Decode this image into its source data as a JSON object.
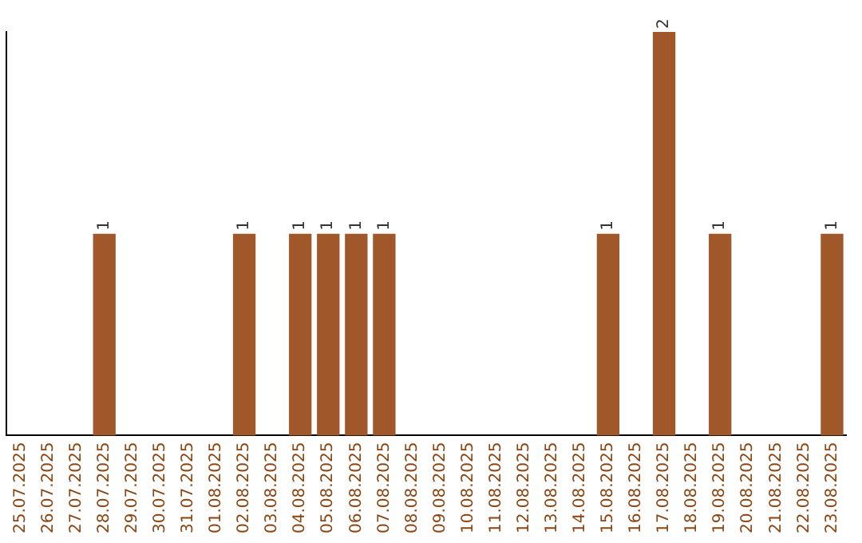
{
  "chart_data": {
    "type": "bar",
    "categories": [
      "25.07.2025",
      "26.07.2025",
      "27.07.2025",
      "28.07.2025",
      "29.07.2025",
      "30.07.2025",
      "31.07.2025",
      "01.08.2025",
      "02.08.2025",
      "03.08.2025",
      "04.08.2025",
      "05.08.2025",
      "06.08.2025",
      "07.08.2025",
      "08.08.2025",
      "09.08.2025",
      "10.08.2025",
      "11.08.2025",
      "12.08.2025",
      "13.08.2025",
      "14.08.2025",
      "15.08.2025",
      "16.08.2025",
      "17.08.2025",
      "18.08.2025",
      "19.08.2025",
      "20.08.2025",
      "21.08.2025",
      "22.08.2025",
      "23.08.2025"
    ],
    "values": [
      0,
      0,
      0,
      1,
      0,
      0,
      0,
      0,
      1,
      0,
      1,
      1,
      1,
      1,
      0,
      0,
      0,
      0,
      0,
      0,
      0,
      1,
      0,
      2,
      0,
      1,
      0,
      0,
      0,
      1
    ],
    "value_labels": [
      null,
      null,
      null,
      "1",
      null,
      null,
      null,
      null,
      "1",
      null,
      "1",
      "1",
      "1",
      "1",
      null,
      null,
      null,
      null,
      null,
      null,
      null,
      "1",
      null,
      "2",
      null,
      "1",
      null,
      null,
      null,
      "1"
    ],
    "color": "#a0582a",
    "grid": false,
    "legend": false,
    "tick_labels": "x"
  }
}
